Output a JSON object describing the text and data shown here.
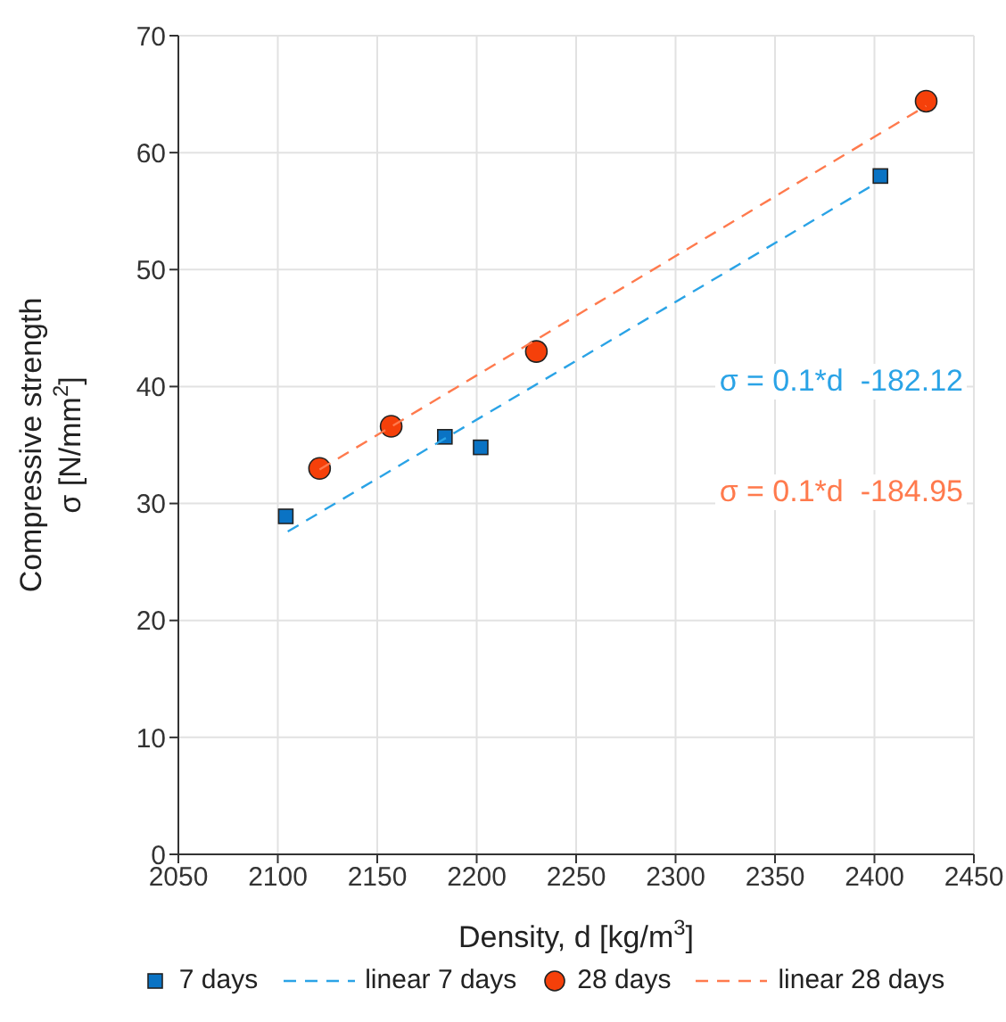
{
  "chart_data": {
    "type": "scatter",
    "xlabel": "Density, d [kg/m$^{3}$]",
    "ylabel": "Compressive strength\nσ [N/mm$^{2}$]",
    "xlim": [
      2050,
      2450
    ],
    "xticks": [
      2050,
      2100,
      2150,
      2200,
      2250,
      2300,
      2350,
      2400,
      2450
    ],
    "ylim": [
      0,
      70
    ],
    "yticks": [
      0,
      10,
      20,
      30,
      40,
      50,
      60,
      70
    ],
    "grid": true,
    "legend": "bottom",
    "series": [
      {
        "name": "7 days",
        "marker": "square",
        "color": "#0a73c4",
        "x": [
          2104,
          2184,
          2202,
          2403
        ],
        "values": [
          28.9,
          35.7,
          34.8,
          58.0
        ]
      },
      {
        "name": "linear 7 days",
        "type": "line",
        "line_style": "dashed",
        "marker": "none",
        "color": "#2aa3e6",
        "x": [
          2105,
          2401
        ],
        "values": [
          27.6,
          57.4
        ]
      },
      {
        "name": "28 days",
        "marker": "circle",
        "color": "#f5400a",
        "x": [
          2121,
          2157,
          2230,
          2426
        ],
        "values": [
          33.0,
          36.6,
          43.0,
          64.4
        ]
      },
      {
        "name": "linear 28 days",
        "type": "line",
        "line_style": "dashed",
        "marker": "none",
        "color": "#ff7a4d",
        "x": [
          2121,
          2426
        ],
        "values": [
          32.9,
          64.0
        ]
      }
    ],
    "annotations": [
      "σ = 0.1*d  -182.12",
      "σ = 0.1*d  -184.95"
    ]
  }
}
